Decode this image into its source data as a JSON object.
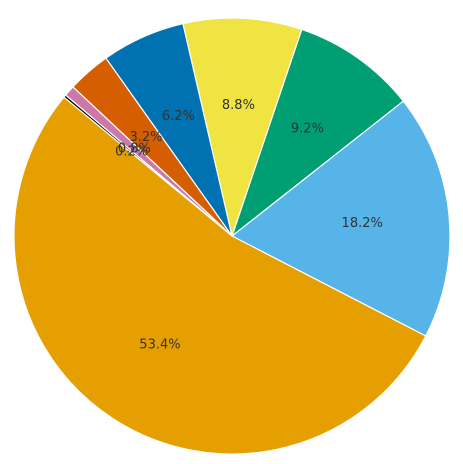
{
  "chart_data": {
    "type": "pie",
    "values": [
      18.2,
      9.2,
      8.8,
      6.2,
      3.2,
      0.8,
      0.2,
      53.4
    ],
    "value_labels": [
      "18.2%",
      "9.2%",
      "8.8%",
      "6.2%",
      "3.2%",
      "0.8%",
      "0.2%",
      "53.4%"
    ],
    "colors": [
      "#56b4e9",
      "#009e73",
      "#f0e442",
      "#0072b2",
      "#d55e00",
      "#cc79a7",
      "#000000",
      "#e69f00"
    ]
  }
}
